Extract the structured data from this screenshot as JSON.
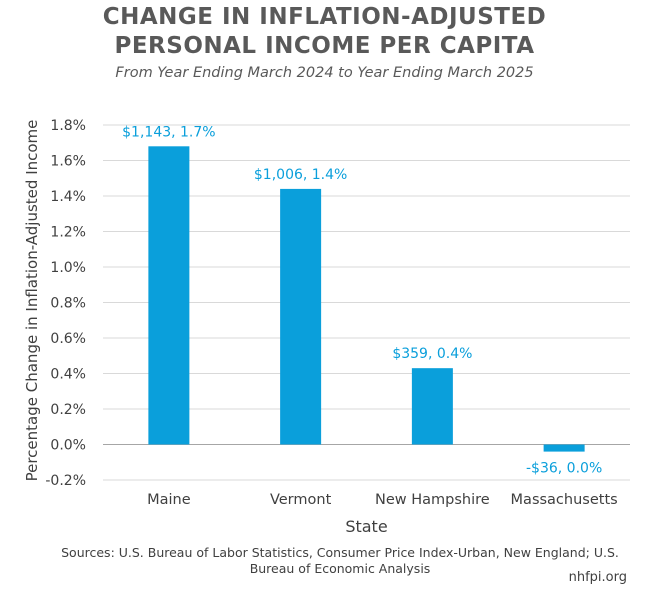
{
  "chart_data": {
    "type": "bar",
    "title_lines": [
      "CHANGE IN INFLATION-ADJUSTED",
      "PERSONAL INCOME PER CAPITA"
    ],
    "subtitle": "From Year Ending March 2024 to Year Ending March 2025",
    "xlabel": "State",
    "ylabel": "Percentage Change in Inflation-Adjusted Income",
    "categories": [
      "Maine",
      "Vermont",
      "New Hampshire",
      "Massachusetts"
    ],
    "values": [
      1.68,
      1.44,
      0.43,
      -0.04
    ],
    "data_labels": [
      "$1,143, 1.7%",
      "$1,006, 1.4%",
      "$359, 0.4%",
      "-$36, 0.0%"
    ],
    "ylim": [
      -0.2,
      1.8
    ],
    "yticks": [
      -0.2,
      0.0,
      0.2,
      0.4,
      0.6,
      0.8,
      1.0,
      1.2,
      1.4,
      1.6,
      1.8
    ],
    "ytick_labels": [
      "-0.2%",
      "0.0%",
      "0.2%",
      "0.4%",
      "0.6%",
      "0.8%",
      "1.0%",
      "1.2%",
      "1.4%",
      "1.6%",
      "1.8%"
    ],
    "grid": true,
    "bar_color": "#0A9FDB",
    "label_color": "#0A9FDB"
  },
  "source": "Sources: U.S. Bureau of Labor Statistics, Consumer Price Index-Urban, New England; U.S. Bureau of Economic Analysis",
  "site": "nhfpi.org"
}
